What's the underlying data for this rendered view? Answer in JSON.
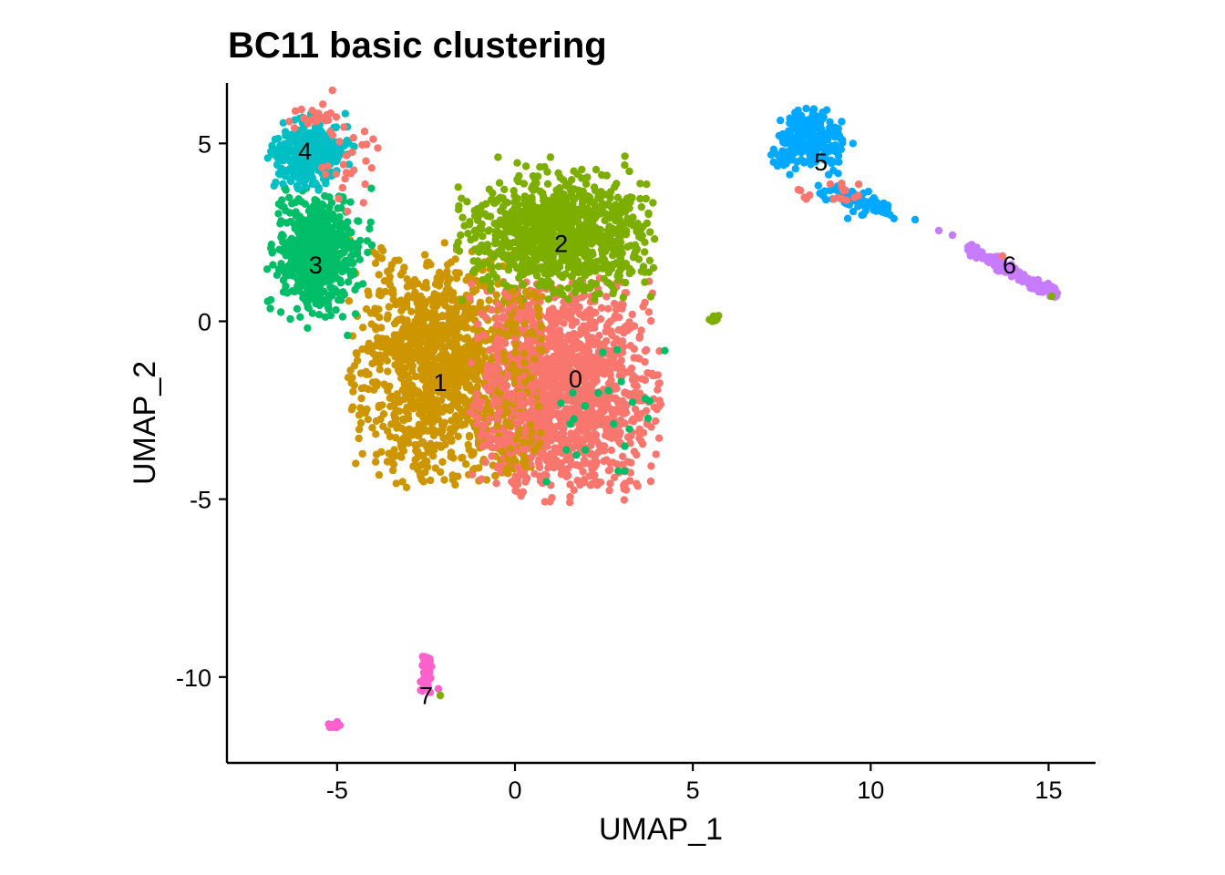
{
  "chart_data": {
    "type": "scatter",
    "title": "BC11 basic clustering",
    "xlabel": "UMAP_1",
    "ylabel": "UMAP_2",
    "xlim": [
      -8.1,
      16.3
    ],
    "ylim": [
      -12.5,
      6.8
    ],
    "x_ticks": [
      -5,
      0,
      5,
      10,
      15
    ],
    "y_ticks": [
      -10,
      -5,
      0,
      5
    ],
    "grid": false,
    "legend": "none",
    "clusters": [
      {
        "id": "0",
        "color": "#F8766D",
        "label_pos": [
          1.7,
          -1.6
        ]
      },
      {
        "id": "1",
        "color": "#CD9600",
        "label_pos": [
          -2.1,
          -1.7
        ]
      },
      {
        "id": "2",
        "color": "#7CAE00",
        "label_pos": [
          1.3,
          2.2
        ]
      },
      {
        "id": "3",
        "color": "#00BE67",
        "label_pos": [
          -5.6,
          1.6
        ]
      },
      {
        "id": "4",
        "color": "#00BFC4",
        "label_pos": [
          -5.9,
          4.8
        ]
      },
      {
        "id": "5",
        "color": "#00A9FF",
        "label_pos": [
          8.6,
          4.5
        ]
      },
      {
        "id": "6",
        "color": "#C77CFF",
        "label_pos": [
          13.9,
          1.6
        ]
      },
      {
        "id": "7",
        "color": "#FF61CC",
        "label_pos": [
          -2.5,
          -10.5
        ]
      }
    ]
  }
}
